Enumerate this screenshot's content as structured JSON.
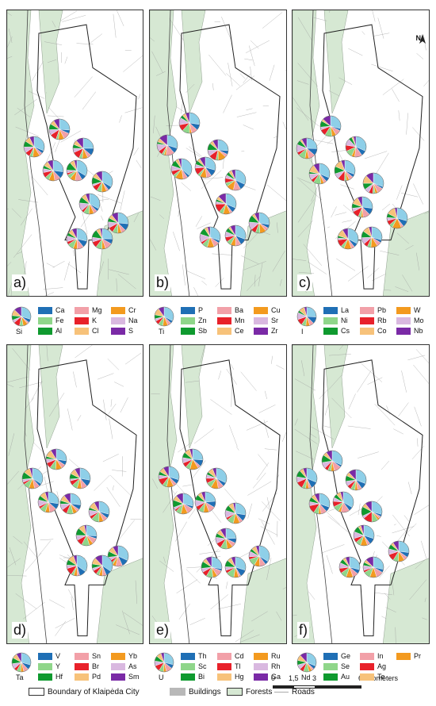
{
  "panels": [
    {
      "label": "a)",
      "legend": {
        "big": "Si",
        "items": [
          "Ca",
          "Mg",
          "Cr",
          "Fe",
          "K",
          "Na",
          "Al",
          "Cl",
          "S"
        ]
      }
    },
    {
      "label": "b)",
      "legend": {
        "big": "Ti",
        "items": [
          "P",
          "Ba",
          "Cu",
          "Zn",
          "Mn",
          "Sr",
          "Sb",
          "Ce",
          "Zr"
        ]
      }
    },
    {
      "label": "c)",
      "legend": {
        "big": "I",
        "items": [
          "La",
          "Pb",
          "W",
          "Ni",
          "Rb",
          "Mo",
          "Cs",
          "Co",
          "Nb"
        ]
      }
    },
    {
      "label": "d)",
      "legend": {
        "big": "Ta",
        "items": [
          "V",
          "Sn",
          "Yb",
          "Y",
          "Br",
          "As",
          "Hf",
          "Pd",
          "Sm"
        ]
      }
    },
    {
      "label": "e)",
      "legend": {
        "big": "U",
        "items": [
          "Th",
          "Cd",
          "Ru",
          "Sc",
          "Tl",
          "Rh",
          "Bi",
          "Hg",
          "Ga"
        ]
      }
    },
    {
      "label": "f)",
      "legend": {
        "big": "Nd",
        "items": [
          "Ge",
          "In",
          "Pr",
          "Se",
          "Ag",
          "",
          "Au",
          "Te",
          ""
        ]
      }
    }
  ],
  "legend_colors": {
    "big": "#8ecfe8",
    "items": [
      "#1f6fb5",
      "#f2a0a8",
      "#f39a1f",
      "#8fd68a",
      "#e8212a",
      "#d9b8e0",
      "#0f9a2f",
      "#f7c27a",
      "#7a2aa6"
    ]
  },
  "bottom_legend": {
    "boundary": "Boundary of Klaipėda City",
    "buildings": "Buildings",
    "forests": "Forests",
    "roads": "Roads"
  },
  "scalebar": {
    "ticks": [
      "0",
      "1,5",
      "3",
      "6 Kilometers"
    ]
  },
  "north_label": "N",
  "map_colors": {
    "forest": "#d6e8d3",
    "water": "#ffffff",
    "roads": "#9a9a9a",
    "boundary": "#222222",
    "buildings": "#b8b8b8"
  }
}
